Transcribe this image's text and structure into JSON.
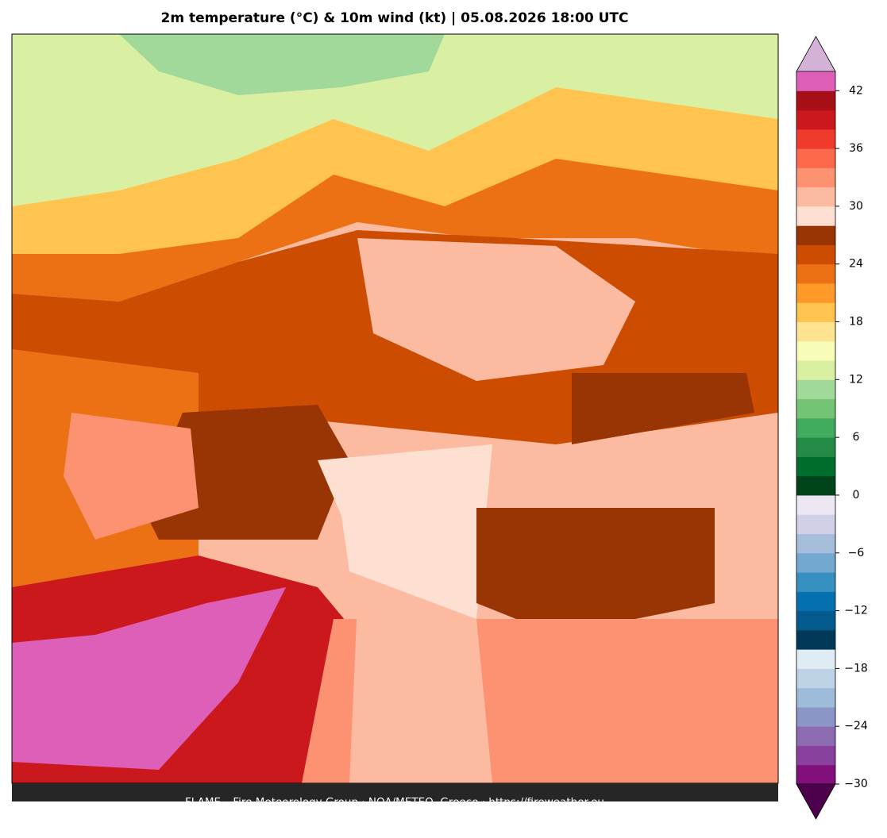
{
  "title": "2m temperature (°C) & 10m wind (kt)  |  05.08.2026 18:00 UTC",
  "footer": "FLAME – Fire Meteorology Group · NOA/METEO, Greece · https://fireweather.eu",
  "colorbar": {
    "lim": [
      -30,
      44
    ],
    "ticks": [
      {
        "value": -30,
        "label": "−30"
      },
      {
        "value": -24,
        "label": "−24"
      },
      {
        "value": -18,
        "label": "−18"
      },
      {
        "value": -12,
        "label": "−12"
      },
      {
        "value": -6,
        "label": "−6"
      },
      0,
      6,
      12,
      18,
      24,
      30,
      36,
      42
    ],
    "colors": [
      "#810f7c",
      "#88419d",
      "#8c6bb1",
      "#8c96c6",
      "#9ebcda",
      "#bfd3e6",
      "#e0ecf4",
      "#023858",
      "#045a8d",
      "#0570b0",
      "#3690c0",
      "#74a9cf",
      "#a6bddb",
      "#d0d1e6",
      "#ece7f2",
      "#00441b",
      "#006d2c",
      "#238b45",
      "#41ab5d",
      "#74c476",
      "#a1d99b",
      "#d9f0a3",
      "#f7fcb9",
      "#fee391",
      "#fec44f",
      "#fe9929",
      "#ec7014",
      "#cc4c02",
      "#993404",
      "#fee0d2",
      "#fcbba1",
      "#fc9272",
      "#fb6a4a",
      "#ef3b2c",
      "#cb181d",
      "#a50f15",
      "#de5fb8"
    ],
    "under_color": "#4d004b",
    "over_color": "#d4b1d6"
  }
}
